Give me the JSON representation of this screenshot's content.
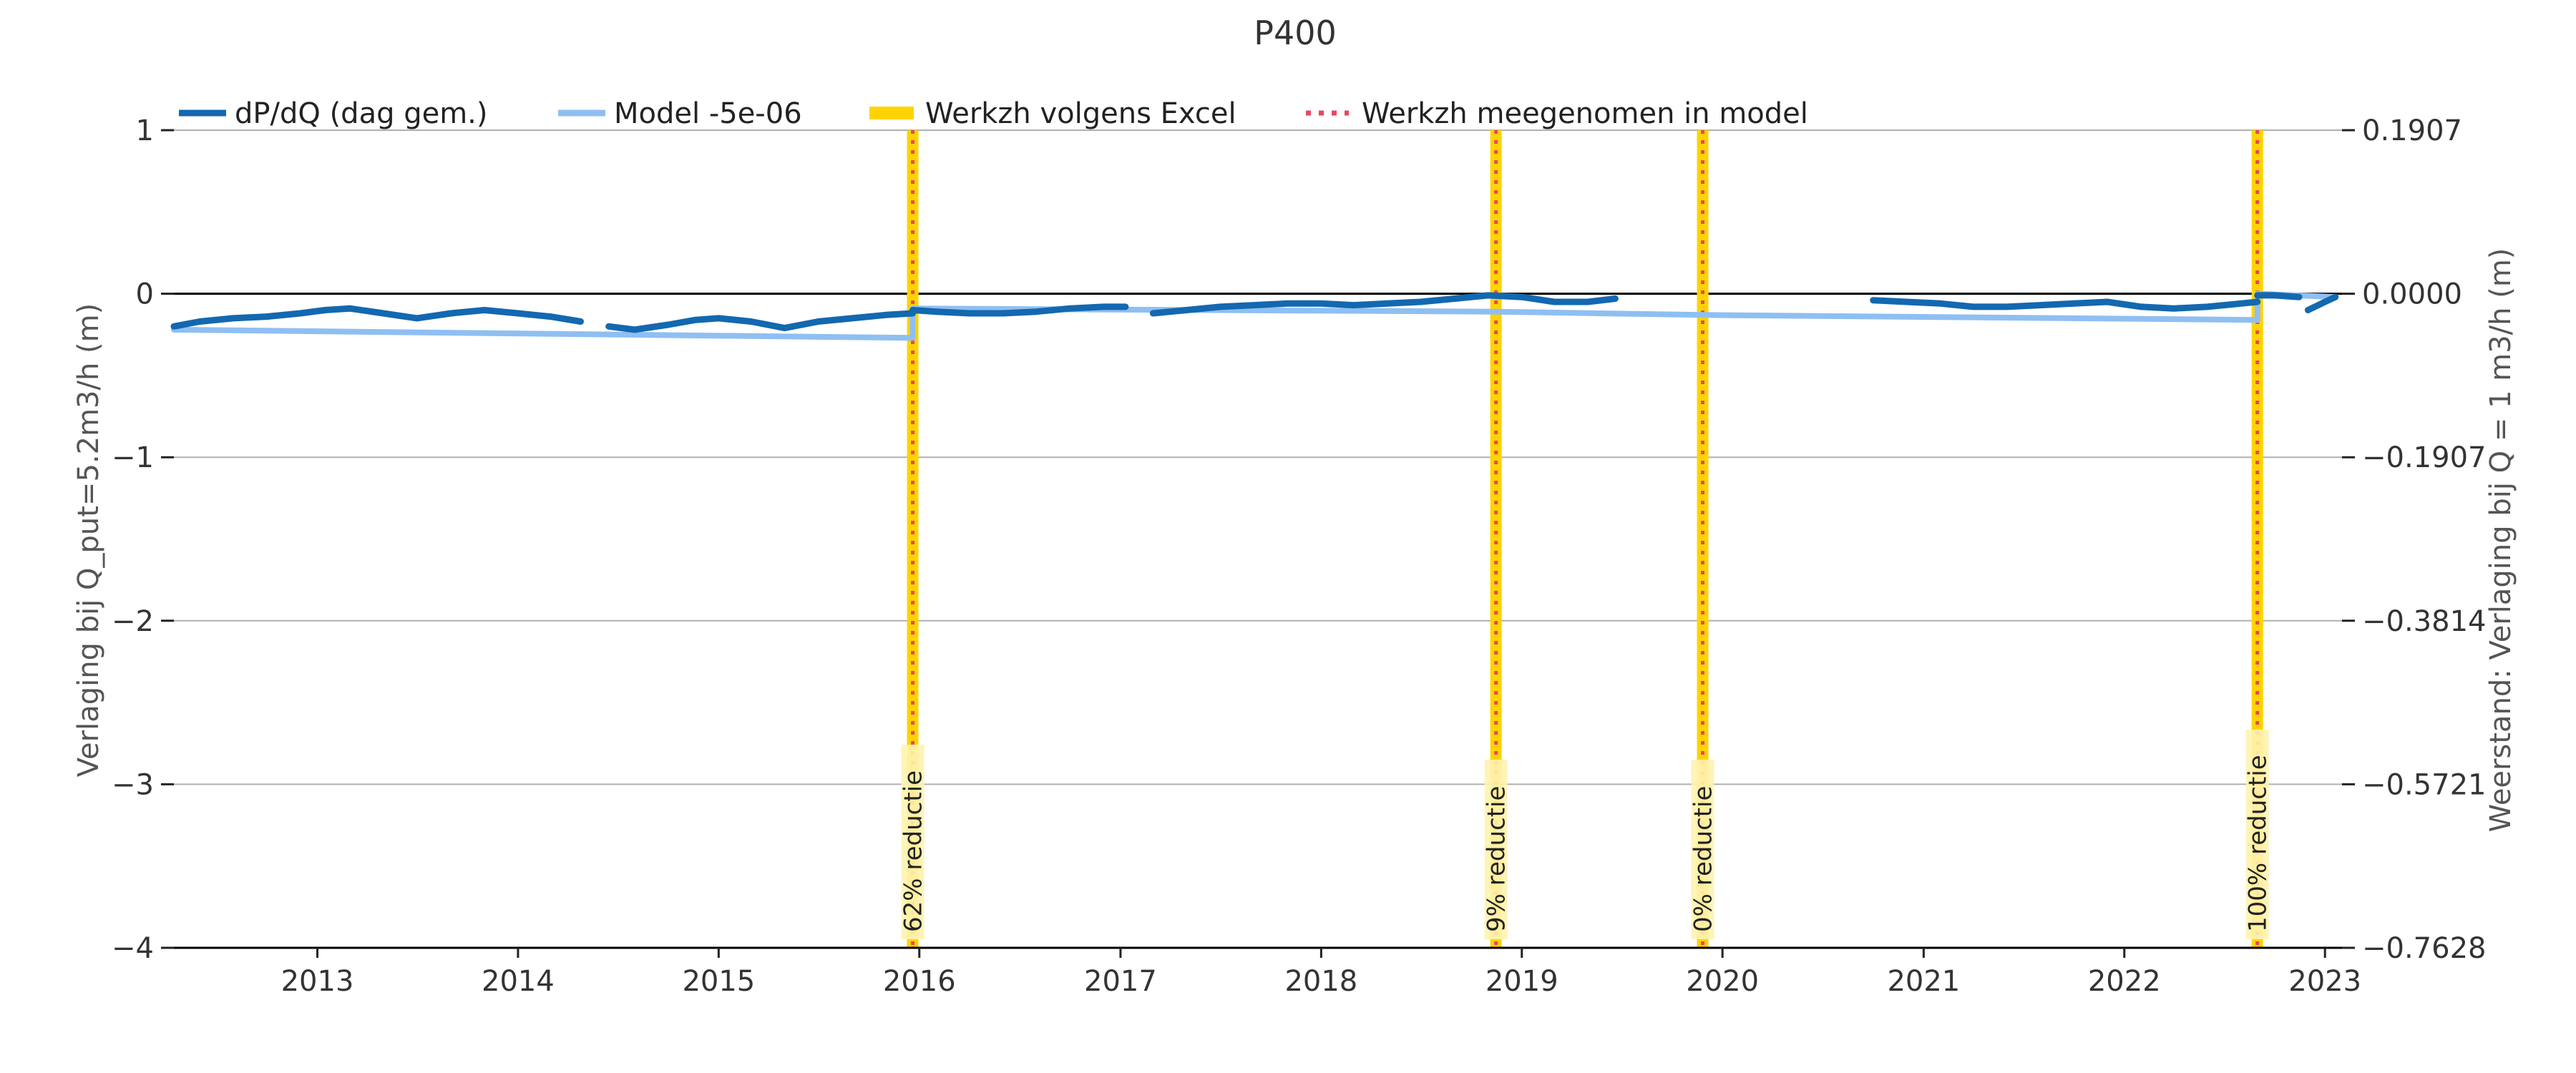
{
  "chart_data": {
    "type": "line",
    "title": "P400",
    "ylabel": "Verlaging bij Q_put=5.2m3/h (m)",
    "ylabel_right": "Weerstand: Verlaging bij Q = 1 m3/h (m)",
    "xlabel": "",
    "xlim": [
      "2012-04-15",
      "2023-02-01"
    ],
    "ylim": [
      -4,
      1
    ],
    "ylim_right": [
      -0.7628,
      0.1907
    ],
    "x_ticks": [
      "2013",
      "2014",
      "2015",
      "2016",
      "2017",
      "2018",
      "2019",
      "2020",
      "2021",
      "2022",
      "2023"
    ],
    "y_ticks": [
      {
        "value": 1,
        "label": "1"
      },
      {
        "value": 0,
        "label": "0"
      },
      {
        "value": -1,
        "label": "−1"
      },
      {
        "value": -2,
        "label": "−2"
      },
      {
        "value": -3,
        "label": "−3"
      },
      {
        "value": -4,
        "label": "−4"
      }
    ],
    "y_ticks_right": [
      "0.1907",
      "0.0000",
      "−0.1907",
      "−0.3814",
      "−0.5721",
      "−0.7628"
    ],
    "grid": "horizontal",
    "legend_position": "top",
    "legend": [
      "dP/dQ (dag gem.)",
      "Model -5e-06",
      "Werkzh volgens Excel",
      "Werkzh meegenomen in model"
    ],
    "colors": {
      "observed": "#1368b0",
      "model": "#8fbff2",
      "excel": "#ffd300",
      "model_event": "#e8475f",
      "zero_line": "#000000",
      "grid": "#b0b0b0"
    },
    "series": [
      {
        "name": "dP/dQ (dag gem.)",
        "segments": [
          {
            "x": [
              "2012-04-15",
              "2012-06-01",
              "2012-08-01",
              "2012-10-01",
              "2012-12-01",
              "2013-01-15",
              "2013-03-01",
              "2013-05-01",
              "2013-07-01",
              "2013-09-01",
              "2013-11-01",
              "2014-01-01",
              "2014-03-01",
              "2014-04-25"
            ],
            "y": [
              -0.2,
              -0.17,
              -0.15,
              -0.14,
              -0.12,
              -0.1,
              -0.09,
              -0.12,
              -0.15,
              -0.12,
              -0.1,
              -0.12,
              -0.14,
              -0.17
            ]
          },
          {
            "x": [
              "2014-06-15",
              "2014-08-01",
              "2014-10-01",
              "2014-11-20",
              "2015-01-01",
              "2015-03-01",
              "2015-05-01",
              "2015-07-01",
              "2015-09-01",
              "2015-11-01",
              "2015-12-20"
            ],
            "y": [
              -0.2,
              -0.22,
              -0.19,
              -0.16,
              -0.15,
              -0.17,
              -0.21,
              -0.17,
              -0.15,
              -0.13,
              -0.12
            ]
          },
          {
            "x": [
              "2015-12-20",
              "2016-02-01",
              "2016-04-01",
              "2016-06-01",
              "2016-08-01",
              "2016-10-01",
              "2016-12-01",
              "2017-01-10"
            ],
            "y": [
              -0.1,
              -0.11,
              -0.12,
              -0.12,
              -0.11,
              -0.09,
              -0.08,
              -0.08
            ]
          },
          {
            "x": [
              "2017-03-01",
              "2017-05-01",
              "2017-07-01",
              "2017-09-01",
              "2017-11-01",
              "2018-01-01",
              "2018-03-01",
              "2018-05-01",
              "2018-07-01",
              "2018-09-01",
              "2018-11-01",
              "2019-01-01",
              "2019-03-01",
              "2019-05-01",
              "2019-06-20"
            ],
            "y": [
              -0.12,
              -0.1,
              -0.08,
              -0.07,
              -0.06,
              -0.06,
              -0.07,
              -0.06,
              -0.05,
              -0.03,
              -0.01,
              -0.02,
              -0.05,
              -0.05,
              -0.03
            ]
          },
          {
            "x": [
              "2020-10-01",
              "2020-12-01",
              "2021-02-01",
              "2021-04-01",
              "2021-06-01",
              "2021-08-01",
              "2021-10-01",
              "2021-12-01",
              "2022-02-01",
              "2022-04-01",
              "2022-06-01",
              "2022-08-01",
              "2022-08-31"
            ],
            "y": [
              -0.04,
              -0.05,
              -0.06,
              -0.08,
              -0.08,
              -0.07,
              -0.06,
              -0.05,
              -0.08,
              -0.09,
              -0.08,
              -0.06,
              -0.05
            ]
          },
          {
            "x": [
              "2022-08-31",
              "2022-10-01",
              "2022-11-15"
            ],
            "y": [
              -0.01,
              -0.01,
              -0.02
            ]
          },
          {
            "x": [
              "2022-12-01",
              "2023-01-01",
              "2023-01-20"
            ],
            "y": [
              -0.1,
              -0.05,
              -0.02
            ]
          }
        ]
      },
      {
        "name": "Model -5e-06",
        "segments": [
          {
            "x": [
              "2012-04-15",
              "2015-12-20",
              "2015-12-20",
              "2018-11-15",
              "2019-11-26",
              "2022-08-31",
              "2022-08-31",
              "2023-01-20"
            ],
            "y": [
              -0.22,
              -0.27,
              -0.09,
              -0.11,
              -0.13,
              -0.16,
              0.0,
              -0.02
            ]
          }
        ]
      }
    ],
    "events": [
      {
        "date": "2015-12-20",
        "label": "62% reductie"
      },
      {
        "date": "2018-11-15",
        "label": "9% reductie"
      },
      {
        "date": "2019-11-26",
        "label": "0% reductie"
      },
      {
        "date": "2022-08-31",
        "label": "100% reductie"
      }
    ]
  }
}
